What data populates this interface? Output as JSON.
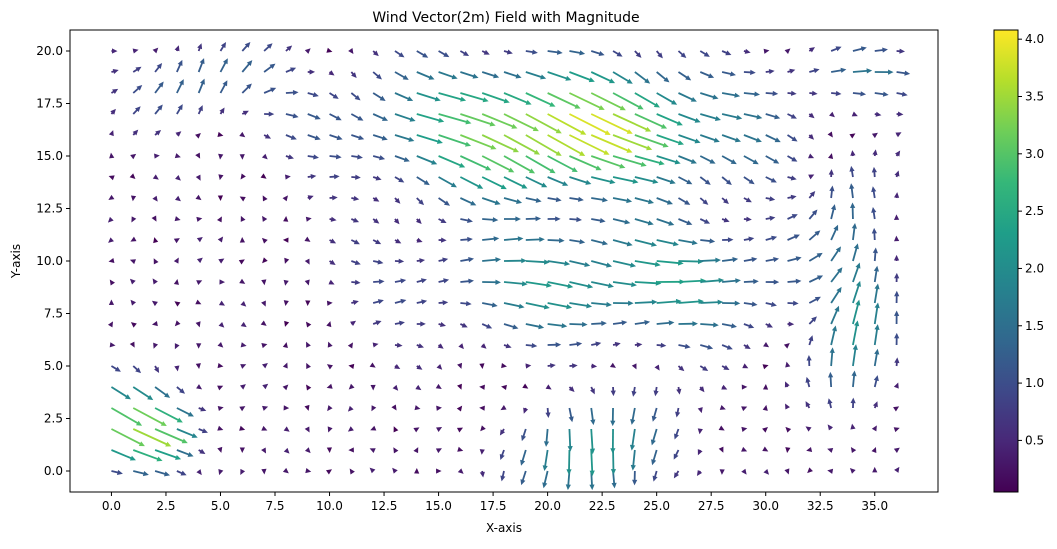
{
  "chart_data": {
    "type": "quiver",
    "title": "Wind Vector(2m) Field with Magnitude",
    "xlabel": "X-axis",
    "ylabel": "Y-axis",
    "xlim": [
      -1.9,
      37.9
    ],
    "ylim": [
      -1.0,
      21.0
    ],
    "grid": false,
    "x_ticks": [
      0.0,
      2.5,
      5.0,
      7.5,
      10.0,
      12.5,
      15.0,
      17.5,
      20.0,
      22.5,
      25.0,
      27.5,
      30.0,
      32.5,
      35.0
    ],
    "x_tick_labels": [
      "0.0",
      "2.5",
      "5.0",
      "7.5",
      "10.0",
      "12.5",
      "15.0",
      "17.5",
      "20.0",
      "22.5",
      "25.0",
      "27.5",
      "30.0",
      "32.5",
      "35.0"
    ],
    "y_ticks": [
      0.0,
      2.5,
      5.0,
      7.5,
      10.0,
      12.5,
      15.0,
      17.5,
      20.0
    ],
    "y_tick_labels": [
      "0.0",
      "2.5",
      "5.0",
      "7.5",
      "10.0",
      "12.5",
      "15.0",
      "17.5",
      "20.0"
    ],
    "grid_x": {
      "start": 0,
      "step": 1,
      "count": 37
    },
    "grid_y": {
      "start": 0,
      "step": 1,
      "count": 21
    },
    "colorbar": {
      "colormap": "viridis",
      "min": 0.05,
      "max": 4.08,
      "ticks": [
        0.5,
        1.0,
        1.5,
        2.0,
        2.5,
        3.0,
        3.5,
        4.0
      ],
      "tick_labels": [
        "0.5",
        "1.0",
        "1.5",
        "2.0",
        "2.5",
        "3.0",
        "3.5",
        "4.0"
      ]
    },
    "colormap_stops": [
      "#440154",
      "#482878",
      "#3e4989",
      "#31688e",
      "#26828e",
      "#1f9e89",
      "#35b779",
      "#6ece58",
      "#b5de2b",
      "#fde725"
    ],
    "field_features": [
      {
        "region": "upper band",
        "x_range": [
          9,
          30
        ],
        "y_range": [
          13,
          20
        ],
        "flow": "southeast",
        "magnitude": 3.5
      },
      {
        "region": "upper-left corner",
        "x_range": [
          0,
          9
        ],
        "y_range": [
          15,
          20
        ],
        "flow": "northeast",
        "magnitude": 1.3
      },
      {
        "region": "middle band",
        "x_range": [
          12,
          34
        ],
        "y_range": [
          6,
          12
        ],
        "flow": "east",
        "magnitude": 2.2
      },
      {
        "region": "bottom-left",
        "x_range": [
          -2,
          5
        ],
        "y_range": [
          0,
          5
        ],
        "flow": "southeast",
        "magnitude": 3.4
      },
      {
        "region": "bottom-center",
        "x_range": [
          18,
          30
        ],
        "y_range": [
          0,
          4
        ],
        "flow": "south",
        "magnitude": 2.1
      },
      {
        "region": "right edge",
        "x_range": [
          32,
          36
        ],
        "y_range": [
          2,
          14
        ],
        "flow": "north",
        "magnitude": 2.0
      }
    ]
  }
}
